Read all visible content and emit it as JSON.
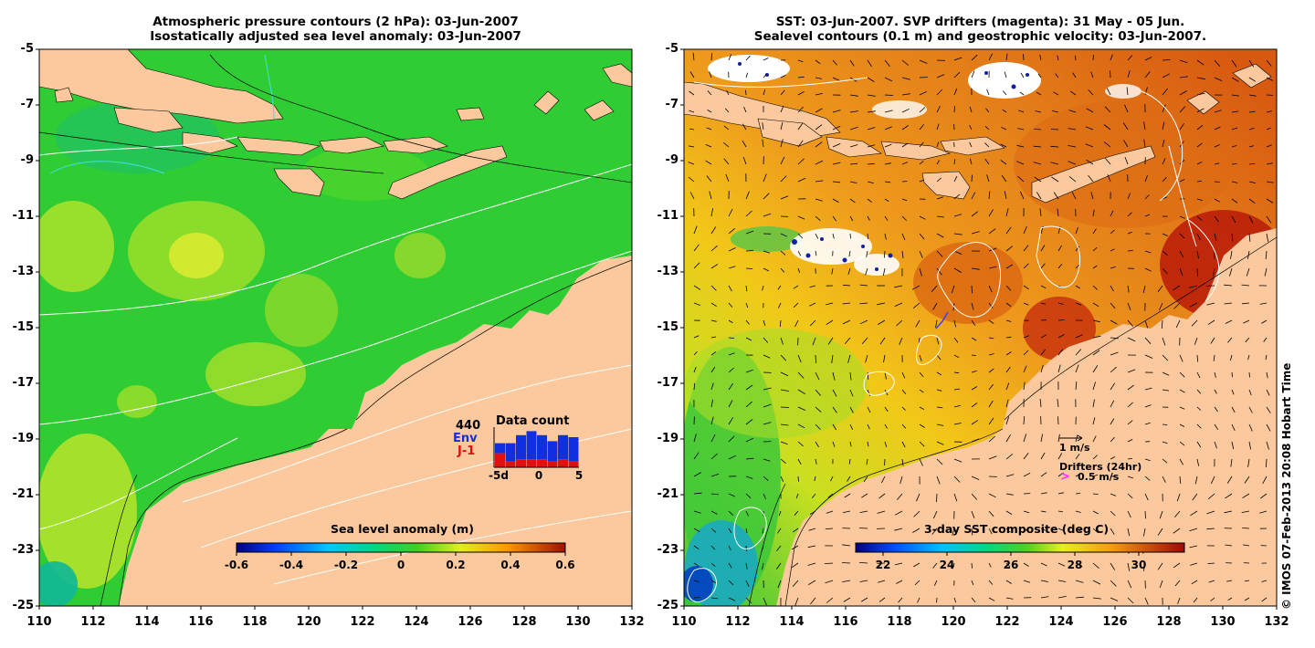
{
  "left_panel": {
    "title_line1": "Atmospheric pressure contours (2 hPa): 03-Jun-2007",
    "title_line2": "Isostatically adjusted sea level anomaly: 03-Jun-2007",
    "y_ticks": [
      "-5",
      "-7",
      "-9",
      "-11",
      "-13",
      "-15",
      "-17",
      "-19",
      "-21",
      "-23",
      "-25"
    ],
    "x_ticks": [
      "110",
      "112",
      "114",
      "116",
      "118",
      "120",
      "122",
      "124",
      "126",
      "128",
      "130",
      "132"
    ],
    "colorbar": {
      "label": "Sea level anomaly (m)",
      "ticks": [
        "-0.6",
        "-0.4",
        "-0.2",
        "0",
        "0.2",
        "0.4",
        "0.6"
      ]
    },
    "inset": {
      "title": "Data count",
      "count": "440",
      "legend_env": "Env",
      "legend_j1": "J-1",
      "ticks": [
        "-5d",
        "0",
        "5"
      ],
      "env_values": [
        5,
        9,
        12,
        14,
        12,
        10,
        12,
        12
      ],
      "j1_values": [
        7,
        3,
        4,
        4,
        4,
        3,
        4,
        3
      ]
    }
  },
  "right_panel": {
    "title_line1": "SST: 03-Jun-2007. SVP drifters (magenta): 31 May - 05 Jun.",
    "title_line2": "Sealevel contours (0.1 m) and geostrophic velocity: 03-Jun-2007.",
    "y_ticks": [
      "-5",
      "-7",
      "-9",
      "-11",
      "-13",
      "-15",
      "-17",
      "-19",
      "-21",
      "-23",
      "-25"
    ],
    "x_ticks": [
      "110",
      "112",
      "114",
      "116",
      "118",
      "120",
      "122",
      "124",
      "126",
      "128",
      "130",
      "132"
    ],
    "colorbar": {
      "label": "3-day SST composite (deg C)",
      "ticks": [
        "22",
        "24",
        "26",
        "28",
        "30"
      ]
    },
    "scale_label": "1 m/s",
    "drifter_title": "Drifters (24hr)",
    "drifter_symbol": ">",
    "drifter_label": "0.5 m/s"
  },
  "credit": "© IMOS 07-Feb-2013 20:08 Hobart Time",
  "colors": {
    "land": "#fbc99d",
    "slaGreen": "#2fcc33",
    "sstOrange": "#e8861c",
    "envBlue": "#1030e0",
    "j1Red": "#e01010",
    "magenta": "#ff33ff"
  }
}
